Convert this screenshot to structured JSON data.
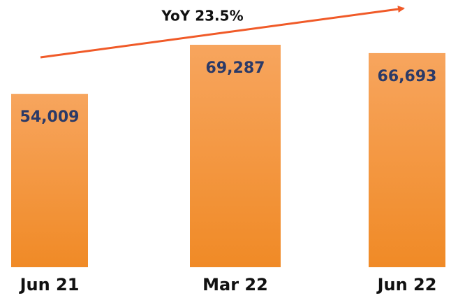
{
  "chart_data": {
    "type": "bar",
    "annotation": "YoY 23.5%",
    "categories": [
      "Jun 21",
      "Mar 22",
      "Jun 22"
    ],
    "values": [
      54009,
      69287,
      66693
    ],
    "value_labels": [
      "54,009",
      "69,287",
      "66,693"
    ],
    "color": "#f28c2c"
  }
}
